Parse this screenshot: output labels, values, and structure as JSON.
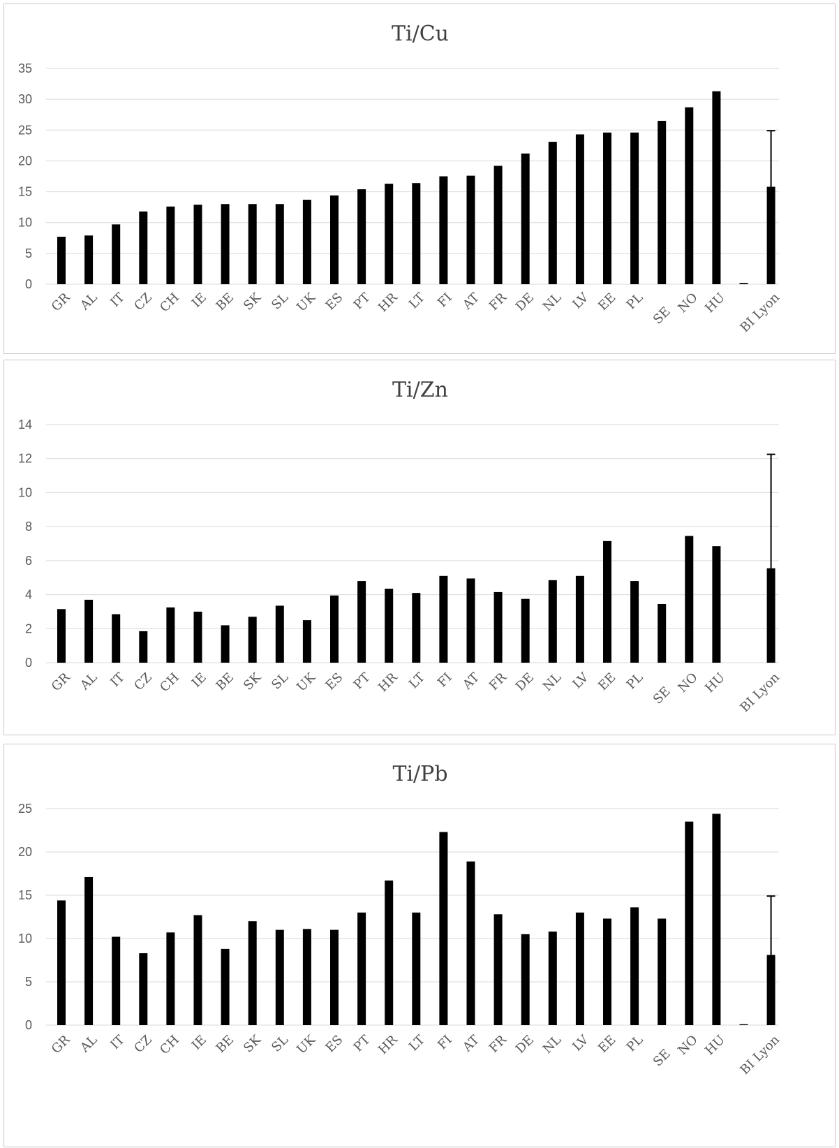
{
  "chart_data": [
    {
      "type": "bar",
      "title": "Ti/Cu",
      "categories": [
        "GR",
        "AL",
        "IT",
        "CZ",
        "CH",
        "IE",
        "BE",
        "SK",
        "SL",
        "UK",
        "ES",
        "PT",
        "HR",
        "LT",
        "FI",
        "AT",
        "FR",
        "DE",
        "NL",
        "LV",
        "EE",
        "PL",
        "SE",
        "NO",
        "HU",
        "",
        "BI Lyon"
      ],
      "values": [
        7.7,
        7.9,
        9.7,
        11.8,
        12.6,
        12.9,
        13.0,
        13.0,
        13.0,
        13.7,
        14.4,
        15.4,
        16.3,
        16.4,
        17.5,
        17.6,
        19.2,
        21.2,
        23.1,
        24.3,
        24.6,
        24.6,
        26.5,
        28.7,
        31.3,
        0.2,
        15.8
      ],
      "error_bar": {
        "category": "BI Lyon",
        "upper": 24.9
      },
      "ylim": [
        0,
        35
      ],
      "yticks": [
        "0",
        "5",
        "10",
        "15",
        "20",
        "25",
        "30",
        "35"
      ],
      "grid": true,
      "bar_color": "#000000"
    },
    {
      "type": "bar",
      "title": "Ti/Zn",
      "categories": [
        "GR",
        "AL",
        "IT",
        "CZ",
        "CH",
        "IE",
        "BE",
        "SK",
        "SL",
        "UK",
        "ES",
        "PT",
        "HR",
        "LT",
        "FI",
        "AT",
        "FR",
        "DE",
        "NL",
        "LV",
        "EE",
        "PL",
        "SE",
        "NO",
        "HU",
        "",
        "BI Lyon"
      ],
      "values": [
        3.15,
        3.7,
        2.85,
        1.85,
        3.25,
        3.0,
        2.2,
        2.7,
        3.35,
        2.5,
        3.95,
        4.8,
        4.35,
        4.1,
        5.1,
        4.95,
        4.15,
        3.75,
        4.85,
        5.1,
        7.15,
        4.8,
        3.45,
        7.45,
        6.85,
        0,
        5.55
      ],
      "error_bar": {
        "category": "BI Lyon",
        "upper": 12.25
      },
      "ylim": [
        0,
        14
      ],
      "yticks": [
        "0",
        "2",
        "4",
        "6",
        "8",
        "10",
        "12",
        "14"
      ],
      "grid": true,
      "bar_color": "#000000"
    },
    {
      "type": "bar",
      "title": "Ti/Pb",
      "categories": [
        "GR",
        "AL",
        "IT",
        "CZ",
        "CH",
        "IE",
        "BE",
        "SK",
        "SL",
        "UK",
        "ES",
        "PT",
        "HR",
        "LT",
        "FI",
        "AT",
        "FR",
        "DE",
        "NL",
        "LV",
        "EE",
        "PL",
        "SE",
        "NO",
        "HU",
        "",
        "BI Lyon"
      ],
      "values": [
        14.4,
        17.1,
        10.2,
        8.3,
        10.7,
        12.7,
        8.8,
        12.0,
        11.0,
        11.1,
        11.0,
        13.0,
        16.7,
        13.0,
        22.3,
        18.9,
        12.8,
        10.5,
        10.8,
        13.0,
        12.3,
        13.6,
        12.3,
        23.5,
        24.4,
        0.1,
        8.1
      ],
      "error_bar": {
        "category": "BI Lyon",
        "upper": 14.9
      },
      "ylim": [
        0,
        25
      ],
      "yticks": [
        "0",
        "5",
        "10",
        "15",
        "20",
        "25"
      ],
      "grid": true,
      "bar_color": "#000000"
    }
  ]
}
